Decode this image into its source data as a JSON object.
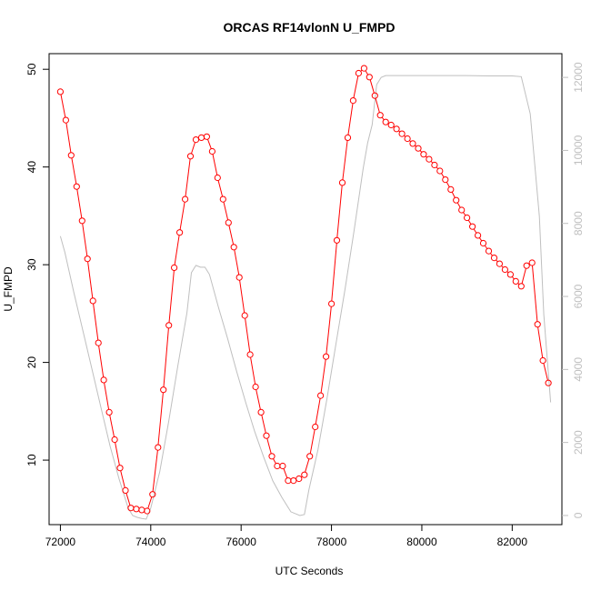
{
  "chart_data": {
    "type": "line",
    "title": "ORCAS RF14vlonN U_FMPD",
    "xlabel": "UTC Seconds",
    "ylabel": "U_FMPD",
    "xlim": [
      71750,
      83100
    ],
    "ylim": [
      3.4,
      51.6
    ],
    "y2lim": [
      -250,
      12650
    ],
    "x_ticks": [
      72000,
      74000,
      76000,
      78000,
      80000,
      82000
    ],
    "y_ticks": [
      10,
      20,
      30,
      40,
      50
    ],
    "y2_ticks": [
      0,
      2000,
      4000,
      6000,
      8000,
      10000,
      12000
    ],
    "grid": false,
    "legend": "none",
    "colors": {
      "primary": "#ff0000",
      "secondary": "#bfbfbf"
    },
    "series": [
      {
        "axis": "left",
        "style": "line-with-circle-markers",
        "x": [
          72000,
          72120,
          72240,
          72360,
          72480,
          72600,
          72720,
          72840,
          72960,
          73080,
          73200,
          73320,
          73440,
          73560,
          73680,
          73800,
          73920,
          74040,
          74160,
          74280,
          74400,
          74520,
          74640,
          74760,
          74880,
          75000,
          75120,
          75240,
          75360,
          75480,
          75600,
          75720,
          75840,
          75960,
          76080,
          76200,
          76320,
          76440,
          76560,
          76680,
          76800,
          76920,
          77040,
          77160,
          77280,
          77400,
          77520,
          77640,
          77760,
          77880,
          78000,
          78120,
          78240,
          78360,
          78480,
          78600,
          78720,
          78840,
          78960,
          79080,
          79200,
          79320,
          79440,
          79560,
          79680,
          79800,
          79920,
          80040,
          80160,
          80280,
          80400,
          80520,
          80640,
          80760,
          80880,
          81000,
          81120,
          81240,
          81360,
          81480,
          81600,
          81720,
          81840,
          81960,
          82080,
          82200,
          82320,
          82440,
          82560,
          82680,
          82800
        ],
        "y": [
          47.7,
          44.8,
          41.2,
          38.0,
          34.5,
          30.6,
          26.3,
          22.0,
          18.2,
          14.9,
          12.1,
          9.2,
          6.9,
          5.1,
          5.0,
          4.9,
          4.8,
          6.5,
          11.3,
          17.2,
          23.8,
          29.7,
          33.3,
          36.7,
          41.1,
          42.8,
          43.0,
          43.1,
          41.6,
          38.9,
          36.7,
          34.3,
          31.8,
          28.7,
          24.8,
          20.8,
          17.5,
          14.9,
          12.5,
          10.4,
          9.4,
          9.4,
          7.9,
          7.9,
          8.1,
          8.5,
          10.4,
          13.4,
          16.6,
          20.6,
          26.0,
          32.5,
          38.4,
          43.0,
          46.8,
          49.6,
          50.1,
          49.2,
          47.3,
          45.3,
          44.6,
          44.3,
          43.9,
          43.4,
          42.9,
          42.4,
          41.9,
          41.3,
          40.8,
          40.2,
          39.6,
          38.7,
          37.7,
          36.6,
          35.6,
          34.8,
          33.9,
          33.0,
          32.2,
          31.4,
          30.7,
          30.1,
          29.5,
          29.0,
          28.3,
          27.8,
          29.9,
          30.2,
          23.9,
          20.2,
          17.9
        ]
      },
      {
        "axis": "right",
        "style": "line",
        "x": [
          72000,
          72100,
          72300,
          72500,
          72700,
          72900,
          73100,
          73300,
          73500,
          73600,
          73700,
          73800,
          73900,
          74000,
          74200,
          74400,
          74600,
          74800,
          74900,
          75000,
          75100,
          75200,
          75300,
          75500,
          75700,
          75900,
          76100,
          76300,
          76500,
          76700,
          76900,
          77100,
          77300,
          77400,
          77500,
          77700,
          77900,
          78100,
          78300,
          78500,
          78700,
          78800,
          78900,
          79000,
          79100,
          79200,
          79400,
          80000,
          81000,
          81500,
          82000,
          82200,
          82400,
          82600,
          82700,
          82850
        ],
        "y": [
          7650,
          7200,
          6100,
          5050,
          4000,
          2950,
          1900,
          1000,
          200,
          0,
          -50,
          -80,
          -100,
          200,
          1200,
          2600,
          4100,
          5550,
          6650,
          6850,
          6800,
          6800,
          6600,
          5700,
          4850,
          3950,
          3100,
          2300,
          1600,
          950,
          500,
          100,
          0,
          30,
          700,
          1800,
          3200,
          4700,
          6200,
          7800,
          9500,
          10200,
          10700,
          11800,
          12000,
          12050,
          12050,
          12050,
          12050,
          12040,
          12040,
          12020,
          11000,
          8200,
          5500,
          3100
        ]
      }
    ]
  }
}
